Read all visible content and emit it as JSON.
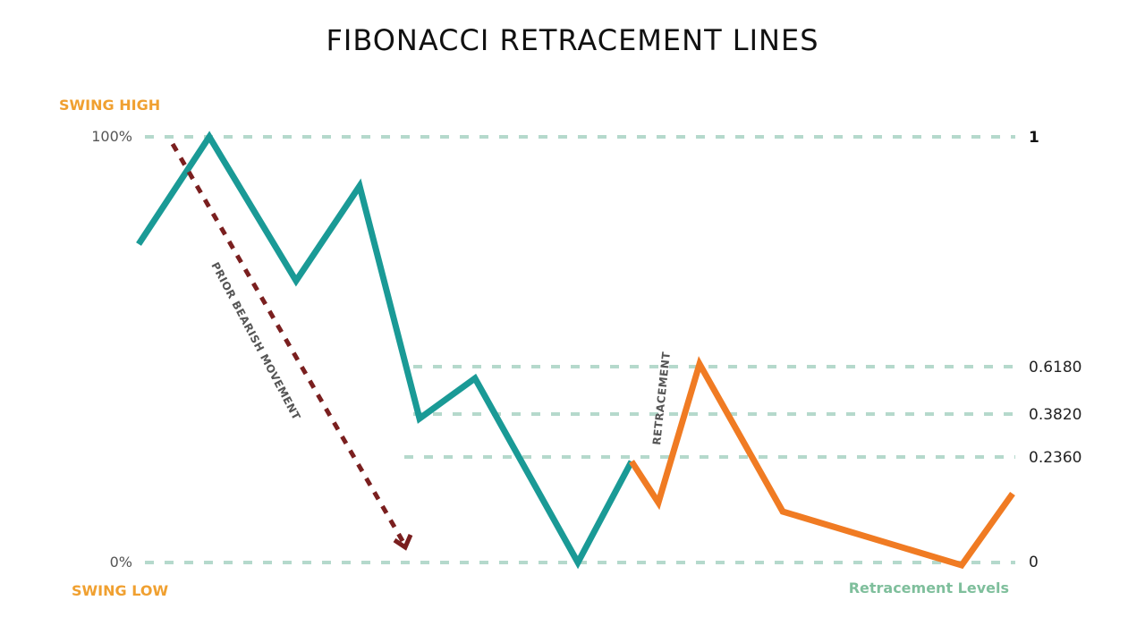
{
  "title": "FIBONACCI RETRACEMENT LINES",
  "labels": {
    "swing_high": "SWING HIGH",
    "swing_low": "SWING LOW",
    "pct_high": "100%",
    "pct_low": "0%",
    "prior_movement": "PRIOR BEARISH MOVEMENT",
    "retracement": "RETRACEMENT",
    "legend": "Retracement Levels"
  },
  "levels": [
    {
      "value": 1,
      "label": "1"
    },
    {
      "value": 0.618,
      "label": "0.6180"
    },
    {
      "value": 0.382,
      "label": "0.3820"
    },
    {
      "value": 0.236,
      "label": "0.2360"
    },
    {
      "value": 0,
      "label": "0"
    }
  ],
  "colors": {
    "bearish_path": "#1a9a96",
    "retracement_path": "#f07b23",
    "swing_labels": "#f0a030",
    "level_lines": "#b5d9cc",
    "legend": "#7fbf9c",
    "arrow": "#7a1f1f"
  },
  "icons": {
    "arrowhead": "arrow-down-right-icon"
  }
}
